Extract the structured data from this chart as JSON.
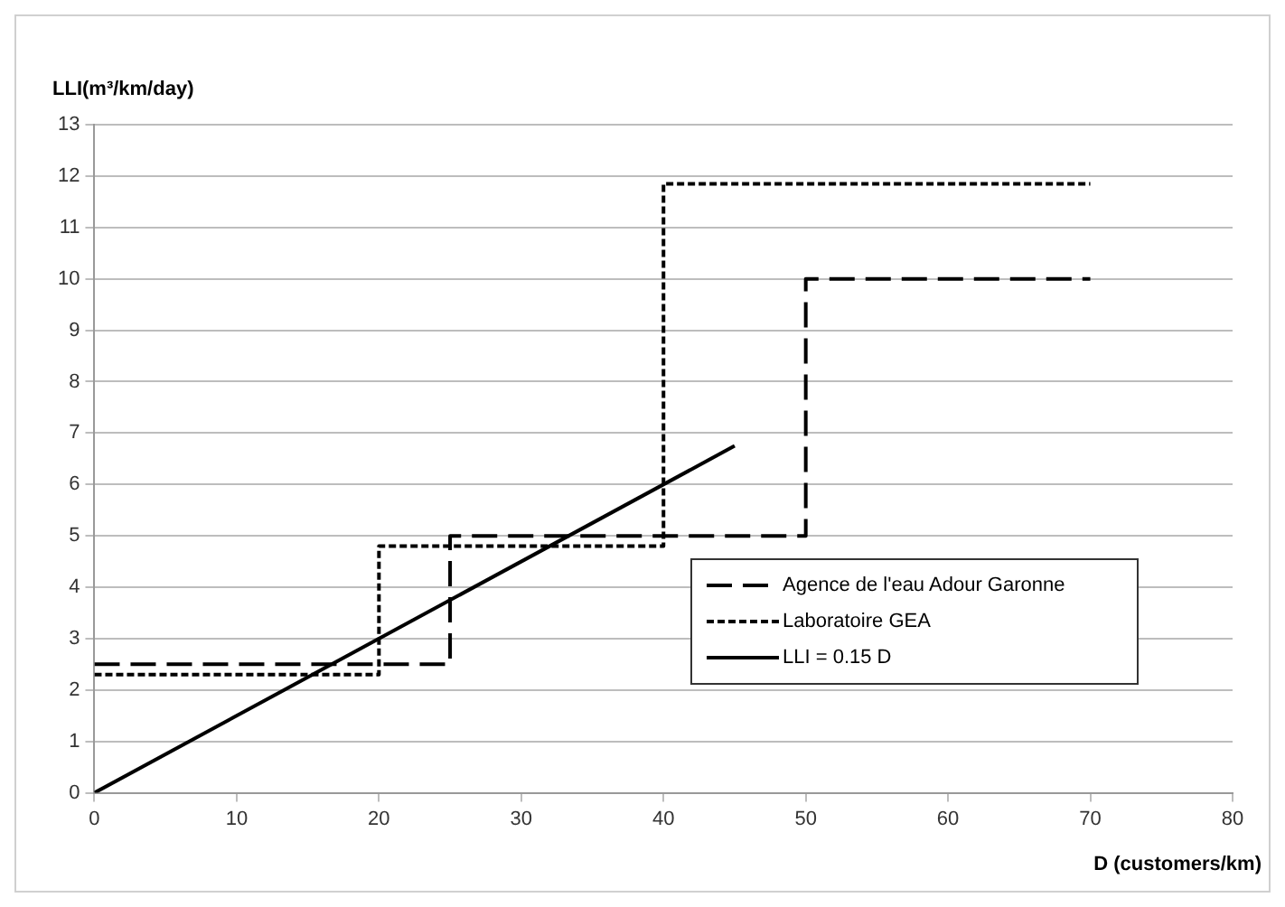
{
  "chart_data": {
    "type": "line",
    "xlabel": "D (customers/km)",
    "ylabel": "LLI(m³/km/day)",
    "xlim": [
      0,
      80
    ],
    "xticks": [
      0,
      10,
      20,
      30,
      40,
      50,
      60,
      70,
      80
    ],
    "ylim": [
      0,
      13
    ],
    "yticks": [
      0,
      1,
      2,
      3,
      4,
      5,
      6,
      7,
      8,
      9,
      10,
      11,
      12,
      13
    ],
    "grid": "y",
    "legend": "right",
    "marker": "none",
    "series": [
      {
        "name": "Agence de l'eau Adour Garonne",
        "type": "step",
        "color": "#000000",
        "line_style": "dashed",
        "x": [
          0,
          25,
          50,
          70
        ],
        "values": [
          2.5,
          5,
          10,
          10
        ]
      },
      {
        "name": "Laboratoire GEA",
        "type": "step",
        "color": "#000000",
        "line_style": "dotted",
        "x": [
          0,
          20,
          40,
          70
        ],
        "values": [
          2.3,
          4.8,
          11.85,
          11.85
        ]
      },
      {
        "name": "LLI = 0.15 D",
        "type": "line",
        "color": "#000000",
        "line_style": "solid",
        "x": [
          0,
          45
        ],
        "values": [
          0,
          6.75
        ]
      }
    ]
  }
}
